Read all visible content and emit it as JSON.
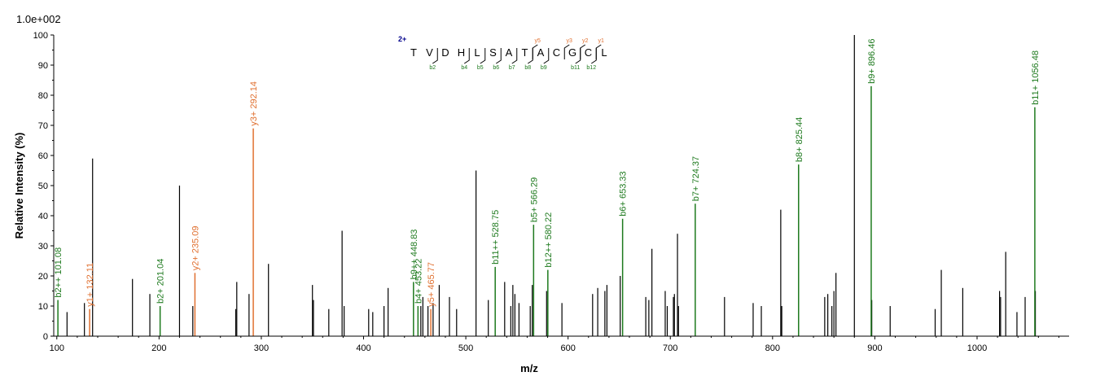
{
  "chart_data": {
    "type": "bar",
    "scale_label": "1.0e+002",
    "xlabel": "m/z",
    "ylabel": "Relative   Intensity (%)",
    "xlim": [
      97,
      1090
    ],
    "ylim": [
      0,
      100
    ],
    "xticks": [
      100,
      200,
      300,
      400,
      500,
      600,
      700,
      800,
      900,
      1000
    ],
    "yticks": [
      0,
      10,
      20,
      30,
      40,
      50,
      60,
      70,
      80,
      90,
      100
    ],
    "colors": {
      "b": "#1e7a1e",
      "y": "#e07030",
      "other": "#000000",
      "charge": "#00008b"
    },
    "annotated_peaks": [
      {
        "mz": 101.08,
        "intensity": 12,
        "label": "b2++ 101.08",
        "type": "b"
      },
      {
        "mz": 132.11,
        "intensity": 9,
        "label": "y1+ 132.11",
        "type": "y"
      },
      {
        "mz": 201.04,
        "intensity": 10,
        "label": "b2+ 201.04",
        "type": "b"
      },
      {
        "mz": 235.09,
        "intensity": 21,
        "label": "y2+ 235.09",
        "type": "y"
      },
      {
        "mz": 292.14,
        "intensity": 69,
        "label": "y3+ 292.14",
        "type": "y"
      },
      {
        "mz": 448.83,
        "intensity": 18,
        "label": "b9++ 448.83",
        "type": "b"
      },
      {
        "mz": 453.22,
        "intensity": 10,
        "label": "b4+ 453.22",
        "type": "b"
      },
      {
        "mz": 465.77,
        "intensity": 9,
        "label": "y5+ 465.77",
        "type": "y"
      },
      {
        "mz": 528.75,
        "intensity": 23,
        "label": "b11++ 528.75",
        "type": "b"
      },
      {
        "mz": 566.29,
        "intensity": 37,
        "label": "b5+ 566.29",
        "type": "b"
      },
      {
        "mz": 580.22,
        "intensity": 22,
        "label": "b12++ 580.22",
        "type": "b"
      },
      {
        "mz": 653.33,
        "intensity": 39,
        "label": "b6+ 653.33",
        "type": "b"
      },
      {
        "mz": 724.37,
        "intensity": 44,
        "label": "b7+ 724.37",
        "type": "b"
      },
      {
        "mz": 825.44,
        "intensity": 57,
        "label": "b8+ 825.44",
        "type": "b"
      },
      {
        "mz": 896.46,
        "intensity": 83,
        "label": "b9+ 896.46",
        "type": "b"
      },
      {
        "mz": 1056.48,
        "intensity": 76,
        "label": "b11+ 1056.48",
        "type": "b"
      }
    ],
    "unlabeled_peaks": [
      {
        "mz": 110,
        "intensity": 8
      },
      {
        "mz": 127,
        "intensity": 11
      },
      {
        "mz": 135,
        "intensity": 59
      },
      {
        "mz": 174,
        "intensity": 19
      },
      {
        "mz": 191,
        "intensity": 14
      },
      {
        "mz": 220,
        "intensity": 50
      },
      {
        "mz": 233,
        "intensity": 10
      },
      {
        "mz": 275,
        "intensity": 9
      },
      {
        "mz": 276,
        "intensity": 18
      },
      {
        "mz": 288,
        "intensity": 14
      },
      {
        "mz": 307,
        "intensity": 24
      },
      {
        "mz": 350,
        "intensity": 17
      },
      {
        "mz": 351,
        "intensity": 12
      },
      {
        "mz": 366,
        "intensity": 9
      },
      {
        "mz": 379,
        "intensity": 35
      },
      {
        "mz": 381,
        "intensity": 10
      },
      {
        "mz": 405,
        "intensity": 9
      },
      {
        "mz": 409,
        "intensity": 8
      },
      {
        "mz": 420,
        "intensity": 10
      },
      {
        "mz": 424,
        "intensity": 16
      },
      {
        "mz": 456,
        "intensity": 10
      },
      {
        "mz": 458,
        "intensity": 13
      },
      {
        "mz": 463,
        "intensity": 10
      },
      {
        "mz": 468,
        "intensity": 11
      },
      {
        "mz": 474,
        "intensity": 17
      },
      {
        "mz": 484,
        "intensity": 13
      },
      {
        "mz": 491,
        "intensity": 9
      },
      {
        "mz": 510,
        "intensity": 55
      },
      {
        "mz": 522,
        "intensity": 12
      },
      {
        "mz": 538,
        "intensity": 18
      },
      {
        "mz": 544,
        "intensity": 10
      },
      {
        "mz": 546,
        "intensity": 17
      },
      {
        "mz": 548,
        "intensity": 14
      },
      {
        "mz": 552,
        "intensity": 11
      },
      {
        "mz": 563,
        "intensity": 10
      },
      {
        "mz": 565,
        "intensity": 17
      },
      {
        "mz": 579,
        "intensity": 15
      },
      {
        "mz": 594,
        "intensity": 11
      },
      {
        "mz": 624,
        "intensity": 14
      },
      {
        "mz": 629,
        "intensity": 16
      },
      {
        "mz": 636,
        "intensity": 15
      },
      {
        "mz": 638,
        "intensity": 17
      },
      {
        "mz": 651,
        "intensity": 20
      },
      {
        "mz": 676,
        "intensity": 13
      },
      {
        "mz": 679,
        "intensity": 12
      },
      {
        "mz": 682,
        "intensity": 29
      },
      {
        "mz": 695,
        "intensity": 15
      },
      {
        "mz": 697,
        "intensity": 10
      },
      {
        "mz": 703,
        "intensity": 13
      },
      {
        "mz": 704,
        "intensity": 14
      },
      {
        "mz": 707,
        "intensity": 34
      },
      {
        "mz": 708,
        "intensity": 10
      },
      {
        "mz": 753,
        "intensity": 13
      },
      {
        "mz": 781,
        "intensity": 11
      },
      {
        "mz": 789,
        "intensity": 10
      },
      {
        "mz": 808,
        "intensity": 42
      },
      {
        "mz": 809,
        "intensity": 10
      },
      {
        "mz": 851,
        "intensity": 13
      },
      {
        "mz": 854,
        "intensity": 14
      },
      {
        "mz": 858,
        "intensity": 10
      },
      {
        "mz": 860,
        "intensity": 15
      },
      {
        "mz": 862,
        "intensity": 21
      },
      {
        "mz": 880,
        "intensity": 100
      },
      {
        "mz": 897,
        "intensity": 12
      },
      {
        "mz": 915,
        "intensity": 10
      },
      {
        "mz": 959,
        "intensity": 9
      },
      {
        "mz": 965,
        "intensity": 22
      },
      {
        "mz": 986,
        "intensity": 16
      },
      {
        "mz": 1022,
        "intensity": 15
      },
      {
        "mz": 1023,
        "intensity": 13
      },
      {
        "mz": 1028,
        "intensity": 28
      },
      {
        "mz": 1039,
        "intensity": 8
      },
      {
        "mz": 1047,
        "intensity": 13
      },
      {
        "mz": 1057,
        "intensity": 15
      }
    ],
    "sequence": {
      "charge": "2+",
      "residues": [
        "T",
        "V",
        "D",
        "H",
        "L",
        "S",
        "A",
        "T",
        "A",
        "C",
        "G",
        "C",
        "L"
      ],
      "b_ions": [
        {
          "after": 1,
          "label": "b2"
        },
        {
          "after": 3,
          "label": "b4"
        },
        {
          "after": 4,
          "label": "b5"
        },
        {
          "after": 5,
          "label": "b6"
        },
        {
          "after": 6,
          "label": "b7"
        },
        {
          "after": 7,
          "label": "b8"
        },
        {
          "after": 8,
          "label": "b9"
        },
        {
          "after": 10,
          "label": "b11"
        },
        {
          "after": 11,
          "label": "b12"
        }
      ],
      "y_ions": [
        {
          "after": 7,
          "label": "y5"
        },
        {
          "after": 9,
          "label": "y3"
        },
        {
          "after": 10,
          "label": "y2"
        },
        {
          "after": 11,
          "label": "y1"
        }
      ]
    }
  }
}
